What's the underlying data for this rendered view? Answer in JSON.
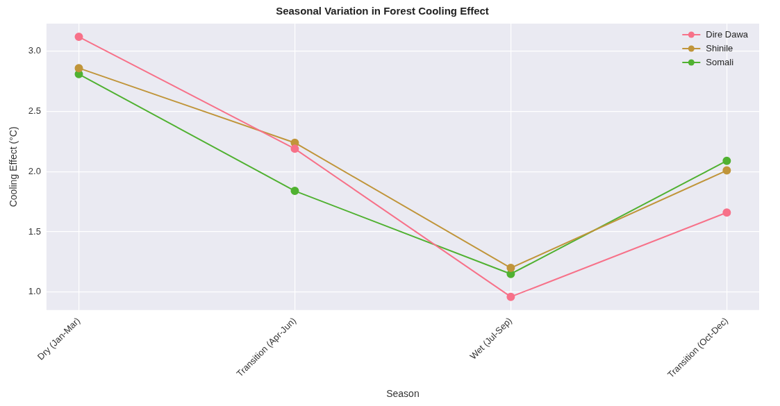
{
  "chart_data": {
    "type": "line",
    "title": "Seasonal Variation in Forest Cooling Effect",
    "xlabel": "Season",
    "ylabel": "Cooling Effect (°C)",
    "categories": [
      "Dry (Jan-Mar)",
      "Transition (Apr-Jun)",
      "Wet (Jul-Sep)",
      "Transition (Oct-Dec)"
    ],
    "series": [
      {
        "name": "Dire Dawa",
        "color": "#f77189",
        "values": [
          3.12,
          2.19,
          0.96,
          1.66
        ]
      },
      {
        "name": "Shinile",
        "color": "#c0953a",
        "values": [
          2.86,
          2.24,
          1.2,
          2.01
        ]
      },
      {
        "name": "Somali",
        "color": "#50b131",
        "values": [
          2.81,
          1.84,
          1.15,
          2.09
        ]
      }
    ],
    "ylim": [
      0.85,
      3.23
    ],
    "yticks": [
      {
        "value": 1,
        "label": "1.0"
      },
      1.5,
      {
        "value": 2,
        "label": "2.0"
      },
      2.5,
      {
        "value": 3,
        "label": "3.0"
      }
    ],
    "grid": true,
    "legend": "top right",
    "marker": "circle",
    "line_style": "solid"
  }
}
